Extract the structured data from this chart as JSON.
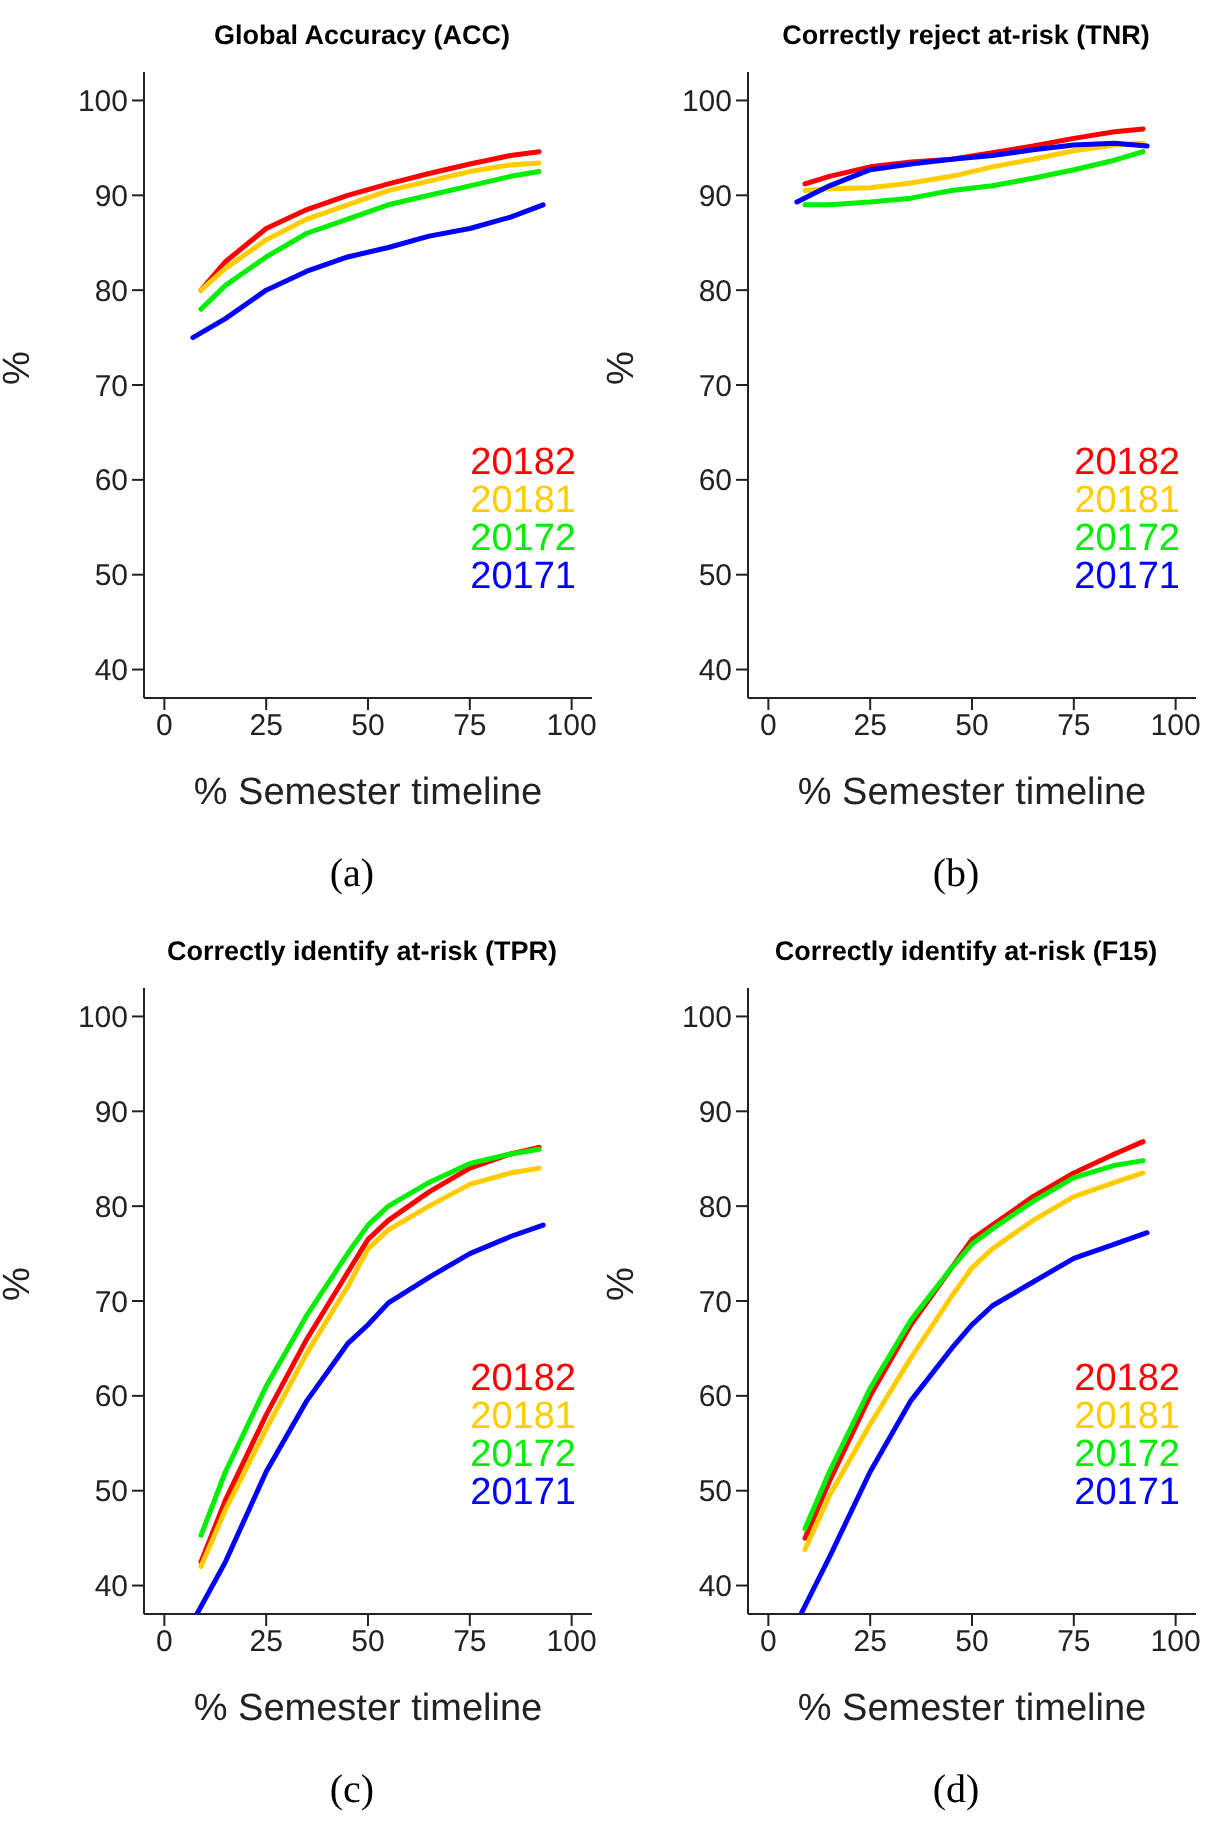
{
  "chart_data": [
    {
      "type": "line",
      "title": "Global Accuracy (ACC)",
      "xlabel": "% Semester timeline",
      "ylabel": "%",
      "annotations": [
        "(a)"
      ],
      "xlim": [
        -5,
        105
      ],
      "xticks": [
        0,
        25,
        50,
        75,
        100
      ],
      "ylim": [
        37,
        103
      ],
      "yticks": [
        40,
        50,
        60,
        70,
        80,
        90,
        100
      ],
      "legend": "bottom right",
      "grid": false,
      "x": [
        9,
        15,
        25,
        35,
        45,
        55,
        65,
        75,
        85,
        92
      ],
      "series": [
        {
          "name": "20182",
          "color": "#ff0000",
          "values": [
            80,
            83,
            86.5,
            88.5,
            90,
            91.2,
            92.3,
            93.3,
            94.2,
            94.6
          ]
        },
        {
          "name": "20181",
          "color": "#ffcc00",
          "values": [
            80,
            82.3,
            85.3,
            87.5,
            89,
            90.5,
            91.5,
            92.5,
            93.2,
            93.4
          ]
        },
        {
          "name": "20172",
          "color": "#00ee00",
          "values": [
            78,
            80.5,
            83.5,
            86,
            87.5,
            89,
            90,
            91,
            92,
            92.5
          ]
        },
        {
          "name": "20171",
          "color": "#0000ff",
          "x": [
            7,
            15,
            25,
            35,
            45,
            55,
            65,
            75,
            85,
            93
          ],
          "values": [
            75,
            77,
            80,
            82,
            83.5,
            84.5,
            85.7,
            86.5,
            87.7,
            89
          ]
        }
      ]
    },
    {
      "type": "line",
      "title": "Correctly reject at-risk (TNR)",
      "xlabel": "% Semester timeline",
      "ylabel": "%",
      "annotations": [
        "(b)"
      ],
      "xlim": [
        -5,
        105
      ],
      "xticks": [
        0,
        25,
        50,
        75,
        100
      ],
      "ylim": [
        37,
        103
      ],
      "yticks": [
        40,
        50,
        60,
        70,
        80,
        90,
        100
      ],
      "legend": "bottom right",
      "grid": false,
      "x": [
        9,
        15,
        25,
        35,
        45,
        55,
        65,
        75,
        85,
        92
      ],
      "series": [
        {
          "name": "20182",
          "color": "#ff0000",
          "values": [
            91.2,
            92,
            93,
            93.5,
            93.8,
            94.5,
            95.2,
            96,
            96.7,
            97
          ]
        },
        {
          "name": "20181",
          "color": "#ffcc00",
          "values": [
            90.5,
            90.7,
            90.8,
            91.3,
            92,
            93,
            93.8,
            94.7,
            95.3,
            95.5
          ]
        },
        {
          "name": "20172",
          "color": "#00ee00",
          "values": [
            89,
            89,
            89.3,
            89.7,
            90.5,
            91,
            91.8,
            92.7,
            93.7,
            94.6
          ]
        },
        {
          "name": "20171",
          "color": "#0000ff",
          "x": [
            7,
            15,
            25,
            35,
            45,
            55,
            65,
            75,
            85,
            93
          ],
          "values": [
            89.3,
            91,
            92.7,
            93.3,
            93.8,
            94.2,
            94.8,
            95.3,
            95.5,
            95.2
          ]
        }
      ]
    },
    {
      "type": "line",
      "title": "Correctly identify at-risk (TPR)",
      "xlabel": "% Semester timeline",
      "ylabel": "%",
      "annotations": [
        "(c)"
      ],
      "xlim": [
        -5,
        105
      ],
      "xticks": [
        0,
        25,
        50,
        75,
        100
      ],
      "ylim": [
        37,
        103
      ],
      "yticks": [
        40,
        50,
        60,
        70,
        80,
        90,
        100
      ],
      "legend": "bottom right",
      "grid": false,
      "x": [
        9,
        15,
        25,
        35,
        45,
        50,
        55,
        65,
        75,
        85,
        92
      ],
      "series": [
        {
          "name": "20182",
          "color": "#ff0000",
          "values": [
            42.5,
            49,
            58,
            66,
            73,
            76.5,
            78.5,
            81.5,
            84,
            85.5,
            86.2
          ]
        },
        {
          "name": "20181",
          "color": "#ffcc00",
          "values": [
            42,
            48,
            56.5,
            64.5,
            71.5,
            75.5,
            77.5,
            80,
            82.3,
            83.5,
            84
          ]
        },
        {
          "name": "20172",
          "color": "#00ee00",
          "values": [
            45.3,
            52,
            61,
            68.5,
            75,
            78,
            80,
            82.5,
            84.5,
            85.5,
            86
          ]
        },
        {
          "name": "20171",
          "color": "#0000ff",
          "x": [
            8,
            15,
            25,
            35,
            45,
            50,
            55,
            65,
            75,
            85,
            93
          ],
          "values": [
            37,
            42.5,
            52,
            59.5,
            65.5,
            67.5,
            69.8,
            72.5,
            75,
            76.8,
            78
          ]
        }
      ]
    },
    {
      "type": "line",
      "title": "Correctly identify at-risk (F15)",
      "xlabel": "% Semester timeline",
      "ylabel": "%",
      "annotations": [
        "(d)"
      ],
      "xlim": [
        -5,
        105
      ],
      "xticks": [
        0,
        25,
        50,
        75,
        100
      ],
      "ylim": [
        37,
        103
      ],
      "yticks": [
        40,
        50,
        60,
        70,
        80,
        90,
        100
      ],
      "legend": "bottom right",
      "grid": false,
      "x": [
        9,
        15,
        25,
        35,
        45,
        50,
        55,
        65,
        75,
        85,
        92
      ],
      "series": [
        {
          "name": "20182",
          "color": "#ff0000",
          "values": [
            45,
            51,
            60,
            67.5,
            73.5,
            76.5,
            78,
            81,
            83.5,
            85.5,
            86.8
          ]
        },
        {
          "name": "20181",
          "color": "#ffcc00",
          "values": [
            43.8,
            49.5,
            57,
            64,
            70.5,
            73.5,
            75.5,
            78.5,
            81,
            82.5,
            83.5
          ]
        },
        {
          "name": "20172",
          "color": "#00ee00",
          "values": [
            46,
            52,
            60.8,
            68,
            73.5,
            76,
            77.6,
            80.5,
            83,
            84.3,
            84.8
          ]
        },
        {
          "name": "20171",
          "color": "#0000ff",
          "x": [
            8,
            15,
            25,
            35,
            45,
            50,
            55,
            65,
            75,
            85,
            93
          ],
          "values": [
            37,
            43,
            52,
            59.5,
            65,
            67.5,
            69.5,
            72,
            74.5,
            76,
            77.2
          ]
        }
      ]
    }
  ]
}
